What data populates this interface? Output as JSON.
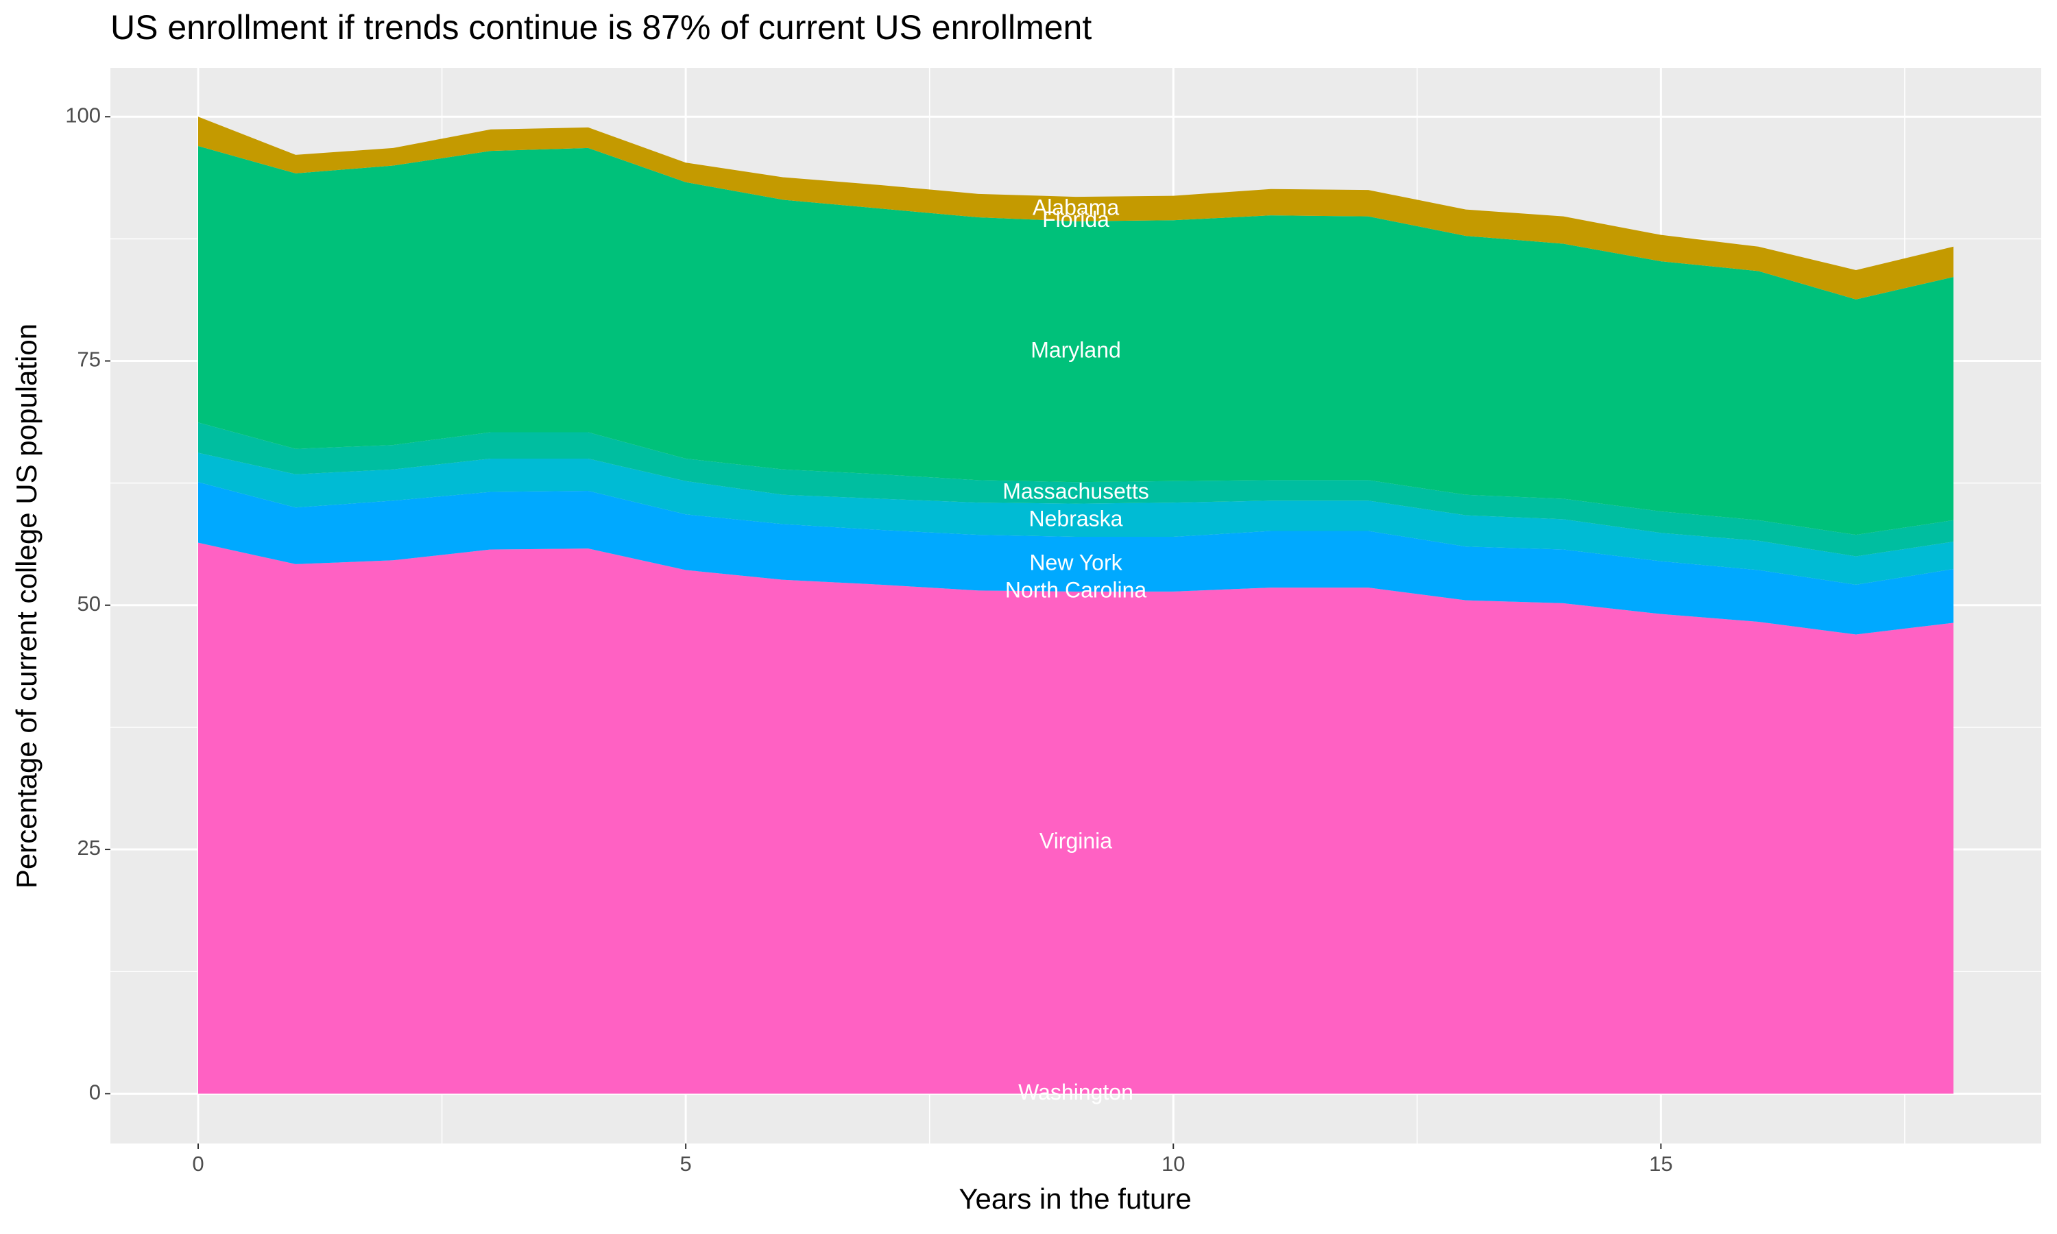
{
  "chart_data": {
    "type": "stacked_area",
    "title": "US enrollment if trends continue is 87% of current US enrollment",
    "x_label": "Years in the future",
    "y_label": "Percentage of current college US population",
    "x": [
      0,
      1,
      2,
      3,
      4,
      5,
      6,
      7,
      8,
      9,
      10,
      11,
      12,
      13,
      14,
      15,
      16,
      17,
      18
    ],
    "series": [
      {
        "name": "Washington",
        "color": "#FF61C3",
        "values": [
          0,
          0,
          0,
          0,
          0,
          0,
          0,
          0,
          0,
          0,
          0,
          0,
          0,
          0,
          0,
          0,
          0,
          0,
          0
        ]
      },
      {
        "name": "Virginia",
        "color": "#FF61C3",
        "values": [
          56.4,
          54.2,
          54.6,
          55.7,
          55.8,
          53.6,
          52.6,
          52.1,
          51.5,
          51.4,
          51.4,
          51.8,
          51.8,
          50.5,
          50.2,
          49.1,
          48.3,
          47.0,
          48.2
        ]
      },
      {
        "name": "North Carolina",
        "color": "#00A9FF",
        "values": [
          0,
          0,
          0,
          0,
          0,
          0,
          0,
          0,
          0,
          0,
          0,
          0,
          0,
          0,
          0,
          0,
          0,
          0,
          0
        ]
      },
      {
        "name": "New York",
        "color": "#00A9FF",
        "values": [
          6.2,
          5.8,
          6.1,
          5.9,
          5.9,
          5.7,
          5.7,
          5.6,
          5.7,
          5.6,
          5.6,
          5.8,
          5.8,
          5.5,
          5.5,
          5.4,
          5.3,
          5.1,
          5.5
        ]
      },
      {
        "name": "Nebraska",
        "color": "#00BBD4",
        "values": [
          3.0,
          3.4,
          3.2,
          3.4,
          3.3,
          3.4,
          3.0,
          3.2,
          3.3,
          3.4,
          3.5,
          3.1,
          3.1,
          3.2,
          3.1,
          2.9,
          3.0,
          2.9,
          2.8
        ]
      },
      {
        "name": "Massachusetts",
        "color": "#00BEA0",
        "values": [
          3.1,
          2.6,
          2.5,
          2.7,
          2.7,
          2.3,
          2.6,
          2.5,
          2.3,
          2.2,
          2.2,
          2.1,
          2.1,
          2.1,
          2.1,
          2.2,
          2.1,
          2.2,
          2.2
        ]
      },
      {
        "name": "Maryland",
        "color": "#00C17A",
        "values": [
          28.3,
          28.2,
          28.6,
          28.8,
          29.1,
          28.3,
          27.6,
          27.2,
          26.9,
          26.7,
          26.7,
          27.1,
          27.0,
          26.5,
          26.1,
          25.6,
          25.5,
          24.1,
          24.9
        ]
      },
      {
        "name": "Florida",
        "color": "#C49A00",
        "values": [
          0,
          0,
          0,
          0,
          0,
          0,
          0,
          0,
          0,
          0,
          0,
          0,
          0,
          0,
          0,
          0,
          0,
          0,
          0
        ]
      },
      {
        "name": "Alabama",
        "color": "#C49A00",
        "values": [
          3.0,
          1.9,
          1.8,
          2.2,
          2.1,
          2.0,
          2.3,
          2.4,
          2.4,
          2.5,
          2.5,
          2.7,
          2.7,
          2.7,
          2.8,
          2.7,
          2.5,
          3.0,
          3.1
        ]
      }
    ],
    "label_x": 9,
    "xlim": [
      -0.9,
      18.9
    ],
    "xticks": [
      0,
      5,
      10,
      15
    ],
    "ylim": [
      -5.1,
      105
    ],
    "yticks": [
      0,
      25,
      50,
      75,
      100
    ],
    "grid": true
  }
}
